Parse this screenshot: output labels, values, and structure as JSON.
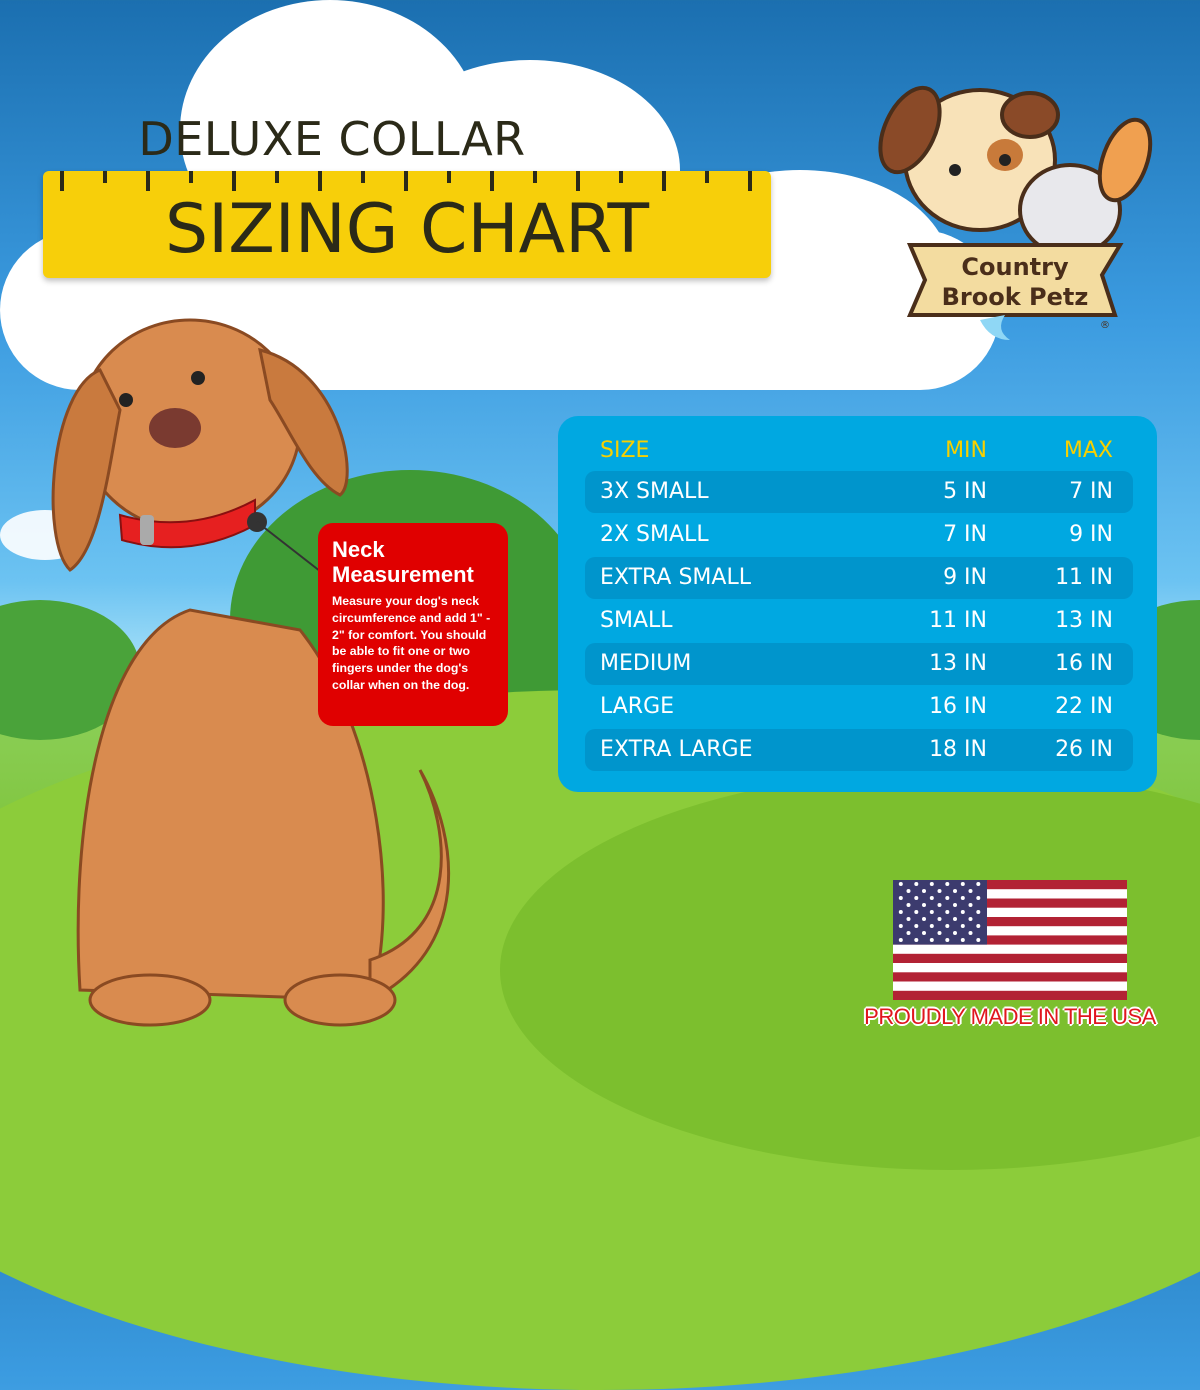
{
  "header": {
    "subtitle": "DELUXE COLLAR",
    "title": "SIZING CHART"
  },
  "logo": {
    "text": "Country Brook Petz",
    "registered": "®"
  },
  "neck_info": {
    "title_line1": "Neck",
    "title_line2": "Measurement",
    "body": "Measure your dog's neck circumference and add 1\" - 2\" for comfort. You should be able to fit one or two fingers under the dog's collar when on the dog."
  },
  "size_table": {
    "headers": {
      "size": "SIZE",
      "min": "MIN",
      "max": "MAX"
    },
    "header_color": "#f7d000",
    "rows": [
      {
        "size": "3X SMALL",
        "min": "5 IN",
        "max": "7 IN"
      },
      {
        "size": "2X SMALL",
        "min": "7 IN",
        "max": "9 IN"
      },
      {
        "size": "EXTRA SMALL",
        "min": "9 IN",
        "max": "11 IN"
      },
      {
        "size": "SMALL",
        "min": "11 IN",
        "max": "13 IN"
      },
      {
        "size": "MEDIUM",
        "min": "13 IN",
        "max": "16 IN"
      },
      {
        "size": "LARGE",
        "min": "16 IN",
        "max": "22 IN"
      },
      {
        "size": "EXTRA LARGE",
        "min": "18 IN",
        "max": "26 IN"
      }
    ]
  },
  "footer": {
    "made_in": "PROUDLY MADE IN THE USA"
  },
  "colors": {
    "ruler": "#f7cf0a",
    "table": "#00a8e1",
    "neck_box": "#e00000",
    "dog": "#d98b4f",
    "collar": "#e62020"
  }
}
